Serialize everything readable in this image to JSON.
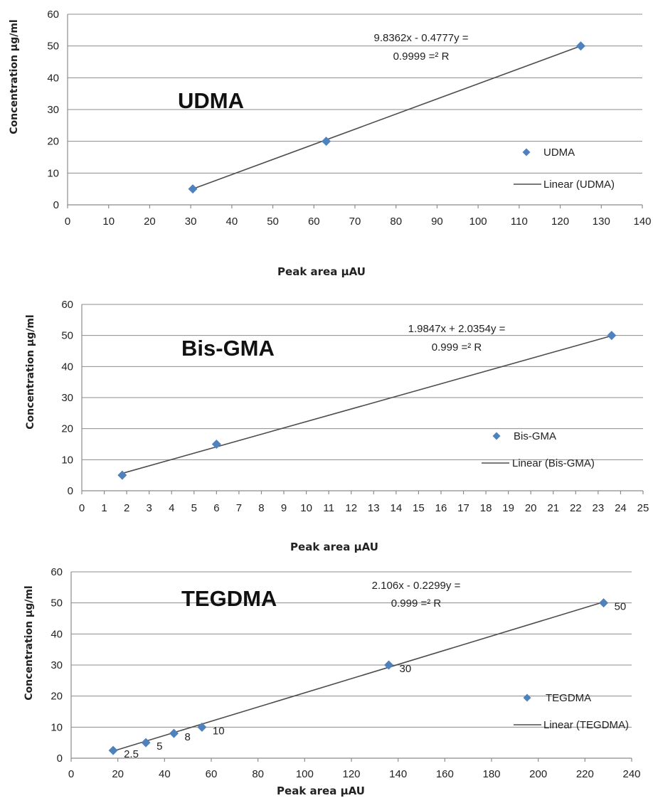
{
  "colors": {
    "marker": "#4f81bd",
    "trendline": "#4d4d4d",
    "grid": "#8c8c8c"
  },
  "chart_data": [
    {
      "type": "scatter",
      "title": "UDMA",
      "xlabel": "Peak area μAU",
      "ylabel": "Concentration µg/ml",
      "xlim": [
        0,
        140
      ],
      "ylim": [
        0,
        60
      ],
      "xticks": [
        0,
        10,
        20,
        30,
        40,
        50,
        60,
        70,
        80,
        90,
        100,
        110,
        120,
        130,
        140
      ],
      "yticks": [
        0,
        10,
        20,
        30,
        40,
        50,
        60
      ],
      "grid": "horizontal",
      "legend_position": "right",
      "equation_lines": [
        "9.8362x - 0.4777y =",
        "0.9999 =² R"
      ],
      "series": [
        {
          "name": "UDMA",
          "x": [
            30.5,
            63.0,
            125.0
          ],
          "y": [
            5,
            20,
            50
          ]
        }
      ],
      "trendline": {
        "name": "Linear (UDMA)",
        "x": [
          30.5,
          125.0
        ],
        "y": [
          5.0,
          50.0
        ]
      },
      "data_labels": []
    },
    {
      "type": "scatter",
      "title": "Bis-GMA",
      "xlabel": "Peak area μAU",
      "ylabel": "Concentration µg/ml",
      "xlim": [
        0,
        25
      ],
      "ylim": [
        0,
        60
      ],
      "xticks": [
        0,
        1,
        2,
        3,
        4,
        5,
        6,
        7,
        8,
        9,
        10,
        11,
        12,
        13,
        14,
        15,
        16,
        17,
        18,
        19,
        20,
        21,
        22,
        23,
        24,
        25
      ],
      "yticks": [
        0,
        10,
        20,
        30,
        40,
        50,
        60
      ],
      "grid": "horizontal",
      "legend_position": "right",
      "equation_lines": [
        "1.9847x + 2.0354y =",
        "0.999 =² R"
      ],
      "series": [
        {
          "name": "Bis-GMA",
          "x": [
            1.8,
            6.0,
            23.6
          ],
          "y": [
            5,
            15,
            50
          ]
        }
      ],
      "trendline": {
        "name": "Linear (Bis-GMA)",
        "x": [
          1.8,
          23.6
        ],
        "y": [
          5.6,
          49.9
        ]
      },
      "data_labels": []
    },
    {
      "type": "scatter",
      "title": "TEGDMA",
      "xlabel": "Peak area μAU",
      "ylabel": "Concentration µg/ml",
      "xlim": [
        0,
        240
      ],
      "ylim": [
        0,
        60
      ],
      "xticks": [
        0,
        20,
        40,
        60,
        80,
        100,
        120,
        140,
        160,
        180,
        200,
        220,
        240
      ],
      "yticks": [
        0,
        10,
        20,
        30,
        40,
        50,
        60
      ],
      "grid": "horizontal",
      "legend_position": "right",
      "equation_lines": [
        "2.106x - 0.2299y =",
        "0.999 =² R"
      ],
      "series": [
        {
          "name": "TEGDMA",
          "x": [
            18,
            32,
            44,
            56,
            136,
            228
          ],
          "y": [
            2.5,
            5,
            8,
            10,
            30,
            50
          ]
        }
      ],
      "trendline": {
        "name": "Linear (TEGDMA)",
        "x": [
          18,
          228
        ],
        "y": [
          2.3,
          50.3
        ]
      },
      "data_labels": [
        "2.5",
        "5",
        "8",
        "10",
        "30",
        "50"
      ]
    }
  ]
}
